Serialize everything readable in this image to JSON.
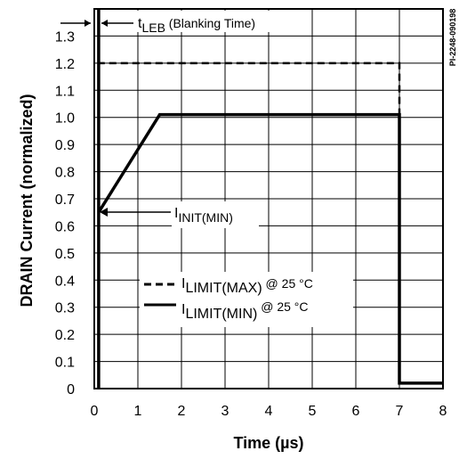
{
  "figure_id": "PI-2248-090198",
  "chart_data": {
    "type": "line",
    "xlabel": "Time (µs)",
    "ylabel": "DRAIN Current (normalized)",
    "xlim": [
      0,
      8
    ],
    "ylim": [
      0,
      1.4
    ],
    "x_ticks": [
      "0",
      "1",
      "2",
      "3",
      "4",
      "5",
      "6",
      "7",
      "8"
    ],
    "y_ticks": [
      "0",
      "0.1",
      "0.2",
      "0.3",
      "0.4",
      "0.5",
      "0.6",
      "0.7",
      "0.8",
      "0.9",
      "1.0",
      "1.1",
      "1.2",
      "1.3"
    ],
    "grid": true,
    "series": [
      {
        "name": "I LIMIT(MAX) @ 25 °C",
        "style": "dashed",
        "points": [
          [
            0.1,
            0
          ],
          [
            0.1,
            1.2
          ],
          [
            7.0,
            1.2
          ],
          [
            7.0,
            0.02
          ],
          [
            8.0,
            0.02
          ]
        ]
      },
      {
        "name": "I LIMIT(MIN) @ 25 °C",
        "style": "solid",
        "points": [
          [
            0.1,
            0
          ],
          [
            0.1,
            1.4
          ],
          [
            0.1,
            0.65
          ],
          [
            1.5,
            1.01
          ],
          [
            7.0,
            1.01
          ],
          [
            7.0,
            0.02
          ],
          [
            8.0,
            0.02
          ]
        ]
      }
    ],
    "legend": {
      "placement": "lower-middle",
      "items": [
        {
          "main": "I",
          "sub": "LIMIT(MAX)",
          "suffix": " @ 25 °C",
          "style": "dashed"
        },
        {
          "main": "I",
          "sub": "LIMIT(MIN)",
          "suffix": " @ 25 °C",
          "style": "solid"
        }
      ]
    },
    "annotations": [
      {
        "main": "t",
        "sub": "LEB",
        "suffix": " (Blanking Time)"
      },
      {
        "main": "I",
        "sub": "INIT(MIN)",
        "suffix": ""
      }
    ]
  }
}
